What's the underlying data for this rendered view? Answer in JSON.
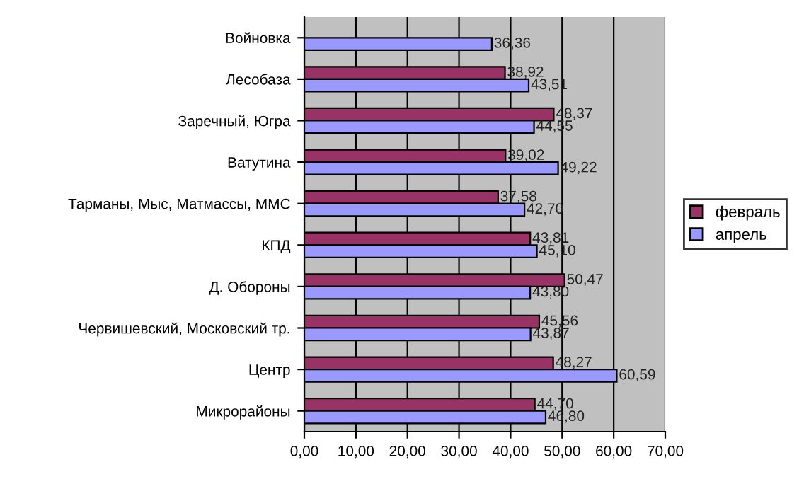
{
  "chart_data": {
    "type": "bar",
    "orientation": "horizontal",
    "categories": [
      "Войновка",
      "Лесобаза",
      "Заречный, Югра",
      "Ватутина",
      "Тарманы, Мыс, Матмассы, ММС",
      "КПД",
      "Д. Обороны",
      "Червишевский, Московский тр.",
      "Центр",
      "Микрорайоны"
    ],
    "series": [
      {
        "name": "февраль",
        "color": "#993366",
        "values": [
          null,
          38.92,
          48.37,
          39.02,
          37.58,
          43.81,
          50.47,
          45.56,
          48.27,
          44.7
        ],
        "value_labels": [
          null,
          "38,92",
          "48,37",
          "39,02",
          "37,58",
          "43,81",
          "50,47",
          "45,56",
          "48,27",
          "44,70"
        ]
      },
      {
        "name": "апрель",
        "color": "#9999ff",
        "values": [
          36.36,
          43.51,
          44.55,
          49.22,
          42.7,
          45.1,
          43.8,
          43.87,
          60.59,
          46.8
        ],
        "value_labels": [
          "36,36",
          "43,51",
          "44,55",
          "49,22",
          "42,70",
          "45,10",
          "43,80",
          "43,87",
          "60,59",
          "46,80"
        ]
      }
    ],
    "xlim": [
      0,
      70
    ],
    "xticks": [
      {
        "value": 0,
        "label": "0,00"
      },
      {
        "value": 10,
        "label": "10,00"
      },
      {
        "value": 20,
        "label": "20,00"
      },
      {
        "value": 30,
        "label": "30,00"
      },
      {
        "value": 40,
        "label": "40,00"
      },
      {
        "value": 50,
        "label": "50,00"
      },
      {
        "value": 60,
        "label": "60,00"
      },
      {
        "value": 70,
        "label": "70,00"
      }
    ],
    "grid": "x",
    "legend": "right"
  }
}
